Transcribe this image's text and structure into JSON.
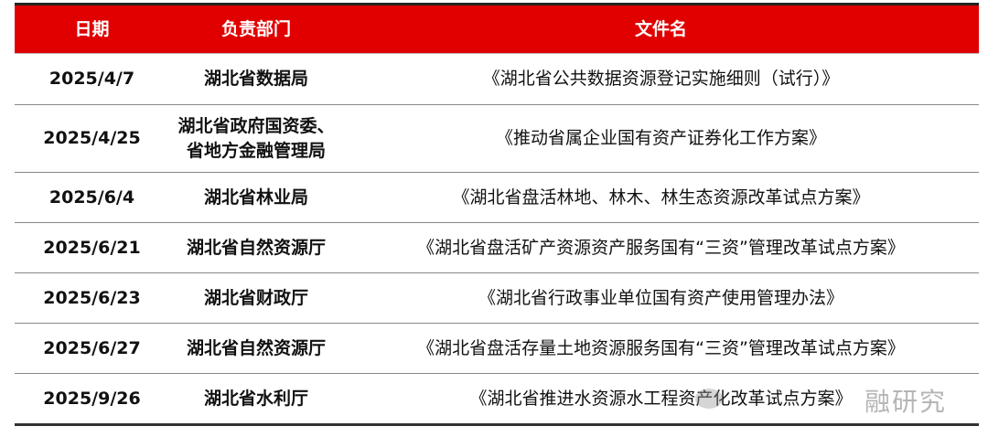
{
  "table": {
    "headers": [
      "日期",
      "负责部门",
      "文件名"
    ],
    "rows": [
      {
        "date": "2025/4/7",
        "dept": "湖北省数据局",
        "file": "《湖北省公共数据资源登记实施细则（试行）》"
      },
      {
        "date": "2025/4/25",
        "dept": "湖北省政府国资委、\n省地方金融管理局",
        "file": "《推动省属企业国有资产证券化工作方案》"
      },
      {
        "date": "2025/6/4",
        "dept": "湖北省林业局",
        "file": "《湖北省盘活林地、林木、林生态资源改革试点方案》"
      },
      {
        "date": "2025/6/21",
        "dept": "湖北省自然资源厅",
        "file": "《湖北省盘活矿产资源资产服务国有“三资”管理改革试点方案》"
      },
      {
        "date": "2025/6/23",
        "dept": "湖北省财政厅",
        "file": "《湖北省行政事业单位国有资产使用管理办法》"
      },
      {
        "date": "2025/6/27",
        "dept": "湖北省自然资源厅",
        "file": "《湖北省盘活存量土地资源服务国有“三资”管理改革试点方案》"
      },
      {
        "date": "2025/9/26",
        "dept": "湖北省水利厅",
        "file": "《湖北省推进水资源水工程资产化改革试点方案》"
      }
    ]
  },
  "watermark": {
    "text": "融研究",
    "icon": "wechat-icon"
  },
  "colors": {
    "header_bg": "#e00000",
    "header_text": "#ffffff"
  }
}
